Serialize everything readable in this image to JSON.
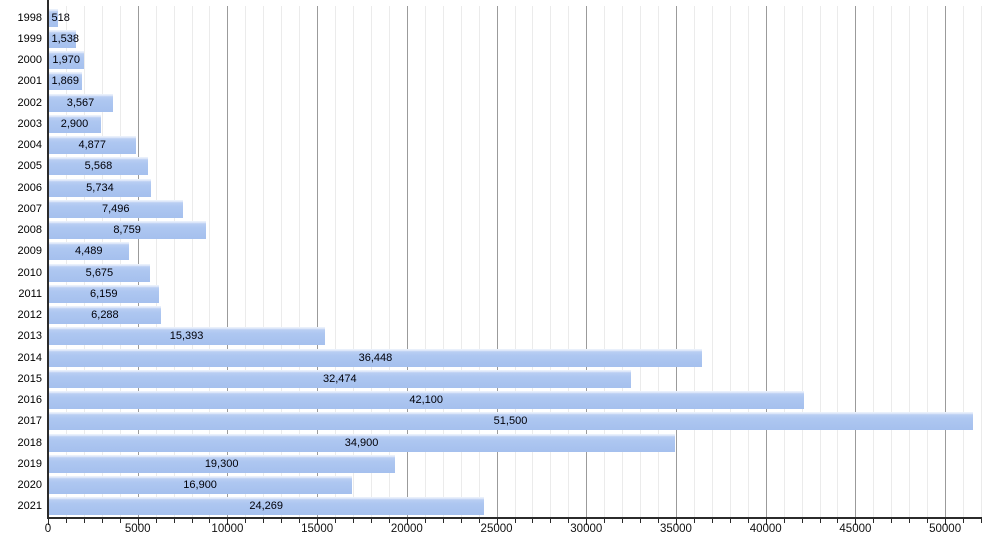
{
  "chart_data": {
    "type": "bar",
    "orientation": "horizontal",
    "title": "",
    "xlabel": "",
    "ylabel": "",
    "categories": [
      "1998",
      "1999",
      "2000",
      "2001",
      "2002",
      "2003",
      "2004",
      "2005",
      "2006",
      "2007",
      "2008",
      "2009",
      "2010",
      "2011",
      "2012",
      "2013",
      "2014",
      "2015",
      "2016",
      "2017",
      "2018",
      "2019",
      "2020",
      "2021"
    ],
    "values": [
      518,
      1538,
      1970,
      1869,
      3567,
      2900,
      4877,
      5568,
      5734,
      7496,
      8759,
      4489,
      5675,
      6159,
      6288,
      15393,
      36448,
      32474,
      42100,
      51500,
      34900,
      19300,
      16900,
      24269
    ],
    "value_labels": [
      "518",
      "1,538",
      "1,970",
      "1,869",
      "3,567",
      "2,900",
      "4,877",
      "5,568",
      "5,734",
      "7,496",
      "8,759",
      "4,489",
      "5,675",
      "6,159",
      "6,288",
      "15,393",
      "36,448",
      "32,474",
      "42,100",
      "51,500",
      "34,900",
      "19,300",
      "16,900",
      "24,269"
    ],
    "xlim": [
      0,
      52000
    ],
    "x_major_tick_values": [
      0,
      5000,
      10000,
      15000,
      20000,
      25000,
      30000,
      35000,
      40000,
      45000,
      50000
    ],
    "x_major_tick_labels": [
      "0",
      "5000",
      "10000",
      "15000",
      "20000",
      "25000",
      "30000",
      "35000",
      "40000",
      "45000",
      "50000"
    ],
    "x_minor_tick_step": 1000,
    "grid": "vertical-minor-and-major",
    "legend": "none",
    "colors": {
      "bar_fill": "#a9c3ef",
      "bar_top_highlight": "#e7eefb",
      "grid_minor": "#ebebeb",
      "grid_major": "#9b9b9b",
      "axis": "#2b2b2b",
      "label_text": "#000008",
      "tick_text": "#111111",
      "background": "#ffffff"
    }
  }
}
